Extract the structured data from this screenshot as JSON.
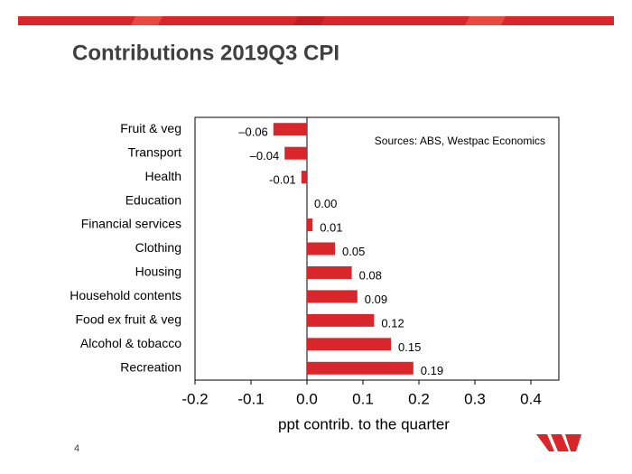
{
  "page_number": 4,
  "chart_data": {
    "type": "bar",
    "orientation": "horizontal",
    "title": "Contributions 2019Q3 CPI",
    "annotation": "Sources: ABS, Westpac Economics",
    "xlabel": "ppt contrib. to the quarter",
    "categories": [
      "Fruit & veg",
      "Transport",
      "Health",
      "Education",
      "Financial services",
      "Clothing",
      "Housing",
      "Household contents",
      "Food ex fruit & veg",
      "Alcohol & tobacco",
      "Recreation"
    ],
    "values": [
      -0.06,
      -0.04,
      -0.01,
      0,
      0.01,
      0.05,
      0.08,
      0.09,
      0.12,
      0.15,
      0.19
    ],
    "value_labels": [
      "–0.06",
      "–0.04",
      "-0.01",
      "0.00",
      "0.01",
      "0.05",
      "0.08",
      "0.09",
      "0.12",
      "0.15",
      "0.19"
    ],
    "color": "#d9262b",
    "xlim": [
      -0.2,
      0.45
    ],
    "xticks": [
      -0.2,
      -0.1,
      {
        "value": 0,
        "label": "0.0"
      },
      0.1,
      0.2,
      0.3,
      0.4
    ]
  }
}
